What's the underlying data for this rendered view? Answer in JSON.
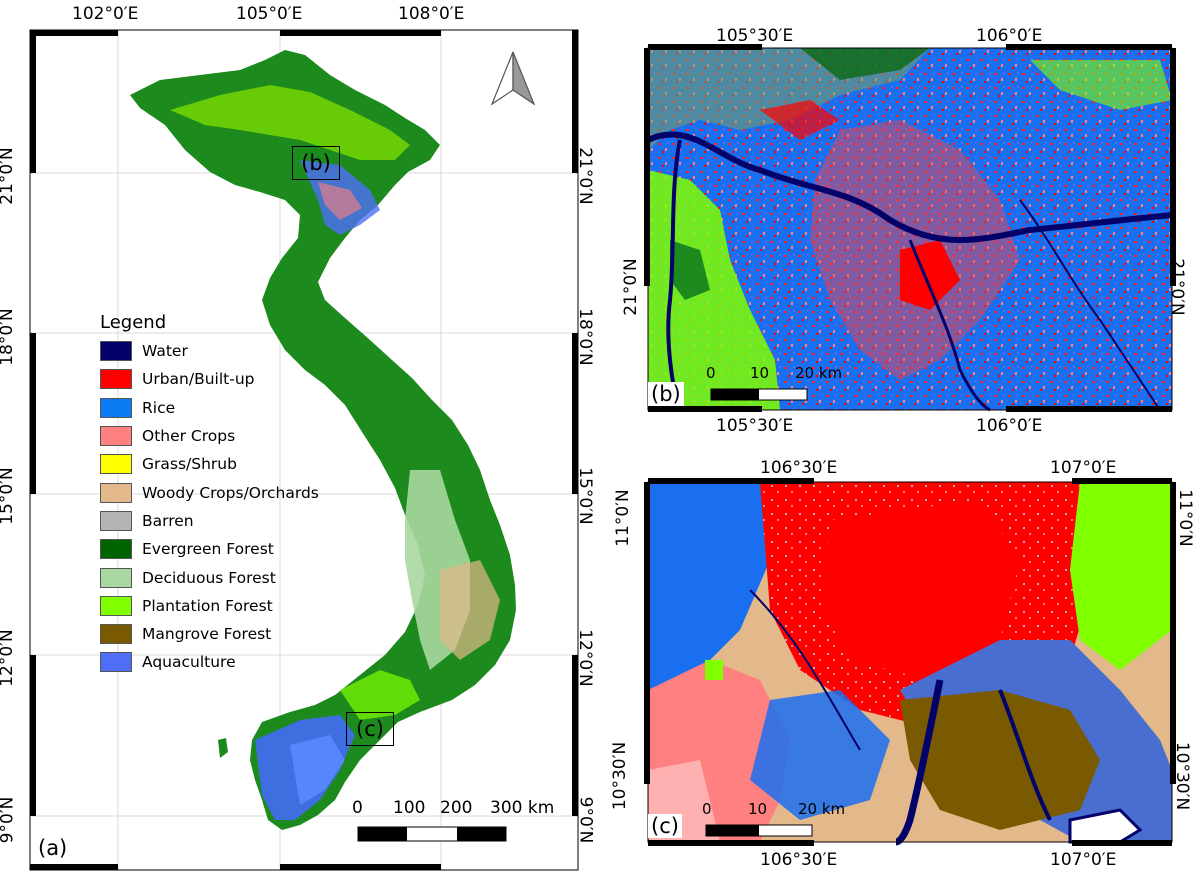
{
  "panel_a": {
    "tag": "(a)",
    "lon_ticks": [
      "102°0′E",
      "105°0′E",
      "108°0′E"
    ],
    "lat_ticks_left": [
      "21°0′N",
      "18°0′N",
      "15°0′N",
      "12°0′N",
      "9°0′N"
    ],
    "lat_ticks_right": [
      "21°0′N",
      "18°0′N",
      "15°0′N",
      "12°0′N",
      "9°0′N"
    ],
    "inset_b_label": "(b)",
    "inset_c_label": "(c)",
    "scale_labels": [
      "0",
      "100",
      "200",
      "300 km"
    ],
    "north_arrow_icon": "north-arrow-icon"
  },
  "legend": {
    "title": "Legend",
    "items": [
      {
        "label": "Water",
        "color": "#02026a"
      },
      {
        "label": "Urban/Built-up",
        "color": "#ff0000"
      },
      {
        "label": "Rice",
        "color": "#0a7bf2"
      },
      {
        "label": "Other Crops",
        "color": "#ff8080"
      },
      {
        "label": "Grass/Shrub",
        "color": "#ffff00"
      },
      {
        "label": "Woody Crops/Orchards",
        "color": "#e3b88a"
      },
      {
        "label": "Barren",
        "color": "#b4b4b4"
      },
      {
        "label": "Evergreen Forest",
        "color": "#006400"
      },
      {
        "label": "Deciduous Forest",
        "color": "#a8d8a0"
      },
      {
        "label": "Plantation Forest",
        "color": "#80ff00"
      },
      {
        "label": "Mangrove Forest",
        "color": "#7a5a00"
      },
      {
        "label": "Aquaculture",
        "color": "#4f6ef7"
      }
    ]
  },
  "panel_b": {
    "tag": "(b)",
    "lon_ticks": [
      "105°30′E",
      "106°0′E"
    ],
    "lat_tick_left": "21°0′N",
    "lat_tick_right": "21°0′N",
    "scale_labels": [
      "0",
      "10",
      "20 km"
    ]
  },
  "panel_c": {
    "tag": "(c)",
    "lon_ticks": [
      "106°30′E",
      "107°0′E"
    ],
    "lat_ticks_left": [
      "11°0′N",
      "10°30′N"
    ],
    "lat_ticks_right": [
      "11°0′N",
      "10°30′N"
    ],
    "scale_labels": [
      "0",
      "10",
      "20 km"
    ]
  }
}
